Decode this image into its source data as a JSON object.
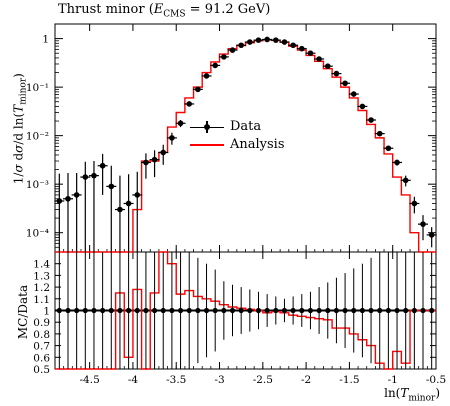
{
  "chart_data": {
    "type": "line",
    "title": "Thrust minor (E_CMS = 91.2 GeV)",
    "ylabel": "1/σ dσ/d ln(T_minor)",
    "ratio_ylabel": "MC/Data",
    "xlabel": "ln(T_minor)",
    "xlim": [
      -4.9,
      -0.5
    ],
    "ylim": [
      4e-05,
      2
    ],
    "ylog": true,
    "ratio_ylim": [
      0.5,
      1.5
    ],
    "xticks": [
      "-4.5",
      "-4",
      "-3.5",
      "-3",
      "-2.5",
      "-2",
      "-1.5",
      "-1",
      "-0.5"
    ],
    "yticks": [
      "10⁻⁴",
      "10⁻³",
      "10⁻²",
      "10⁻¹",
      "1"
    ],
    "ratio_yticks": [
      "0.5",
      "0.6",
      "0.7",
      "0.8",
      "0.9",
      "1",
      "1.1",
      "1.2",
      "1.3",
      "1.4"
    ],
    "legend_position": "center-left",
    "colors": {
      "data": "#000000",
      "analysis": "#ff0000"
    },
    "series": [
      {
        "name": "Data",
        "x": [
          -4.85,
          -4.75,
          -4.65,
          -4.55,
          -4.45,
          -4.35,
          -4.25,
          -4.15,
          -4.05,
          -3.95,
          -3.85,
          -3.75,
          -3.65,
          -3.55,
          -3.45,
          -3.35,
          -3.25,
          -3.15,
          -3.05,
          -2.95,
          -2.85,
          -2.75,
          -2.65,
          -2.55,
          -2.45,
          -2.35,
          -2.25,
          -2.15,
          -2.05,
          -1.95,
          -1.85,
          -1.75,
          -1.65,
          -1.55,
          -1.45,
          -1.35,
          -1.25,
          -1.15,
          -1.05,
          -0.95,
          -0.85,
          -0.75,
          -0.65,
          -0.55
        ],
        "y": [
          0.00045,
          0.0005,
          0.0006,
          0.0014,
          0.0015,
          0.0024,
          0.0009,
          0.0003,
          0.0004,
          0.0006,
          0.0028,
          0.0032,
          0.0045,
          0.009,
          0.018,
          0.045,
          0.09,
          0.17,
          0.28,
          0.42,
          0.58,
          0.73,
          0.85,
          0.93,
          0.96,
          0.93,
          0.85,
          0.73,
          0.62,
          0.5,
          0.38,
          0.27,
          0.19,
          0.12,
          0.072,
          0.04,
          0.021,
          0.011,
          0.0055,
          0.0028,
          0.0012,
          0.0004,
          0.00015,
          9e-05
        ],
        "err_up": [
          0.0012,
          0.0012,
          0.0011,
          0.0015,
          0.0015,
          0.0018,
          0.0015,
          0.0012,
          0.0012,
          0.0012,
          0.0015,
          0.0018,
          0.002,
          0.0025,
          0.003,
          0.004,
          0.006,
          0.008,
          0.01,
          0.012,
          0.014,
          0.016,
          0.018,
          0.02,
          0.02,
          0.02,
          0.018,
          0.016,
          0.014,
          0.012,
          0.01,
          0.008,
          0.006,
          0.004,
          0.003,
          0.0025,
          0.0015,
          0.001,
          0.0006,
          0.0004,
          0.0003,
          0.00015,
          8e-05,
          4e-05
        ],
        "ratio": [
          1,
          1,
          1,
          1,
          1,
          1,
          1,
          1,
          1,
          1,
          1,
          1,
          1,
          1,
          1,
          1,
          1,
          1,
          1,
          1,
          1,
          1,
          1,
          1,
          1,
          1,
          1,
          1,
          1,
          1,
          1,
          1,
          1,
          1,
          1,
          1,
          1,
          1,
          1,
          1,
          1,
          1,
          1,
          1
        ],
        "ratio_err": [
          0.5,
          0.5,
          0.5,
          0.5,
          0.5,
          0.5,
          0.5,
          0.5,
          0.5,
          0.5,
          0.5,
          0.5,
          0.5,
          0.5,
          0.5,
          0.5,
          0.45,
          0.4,
          0.35,
          0.25,
          0.22,
          0.2,
          0.18,
          0.16,
          0.14,
          0.12,
          0.1,
          0.12,
          0.14,
          0.16,
          0.2,
          0.24,
          0.28,
          0.32,
          0.36,
          0.4,
          0.45,
          0.5,
          0.5,
          0.5,
          0.5,
          0.5,
          0.5,
          0.5
        ]
      },
      {
        "name": "Analysis",
        "edges": [
          -4.9,
          -4.8,
          -4.7,
          -4.6,
          -4.5,
          -4.4,
          -4.3,
          -4.2,
          -4.1,
          -4.0,
          -3.9,
          -3.8,
          -3.7,
          -3.6,
          -3.5,
          -3.4,
          -3.3,
          -3.2,
          -3.1,
          -3.0,
          -2.9,
          -2.8,
          -2.7,
          -2.6,
          -2.5,
          -2.4,
          -2.3,
          -2.2,
          -2.1,
          -2.0,
          -1.9,
          -1.8,
          -1.7,
          -1.6,
          -1.5,
          -1.4,
          -1.3,
          -1.2,
          -1.1,
          -1.0,
          -0.9,
          -0.8,
          -0.7,
          -0.6,
          -0.5
        ],
        "y": [
          4e-05,
          4e-05,
          4e-05,
          4e-05,
          4e-05,
          4e-05,
          4e-05,
          4e-05,
          4e-05,
          0.0003,
          0.003,
          0.003,
          0.0045,
          0.015,
          0.03,
          0.06,
          0.1,
          0.2,
          0.33,
          0.48,
          0.62,
          0.72,
          0.82,
          0.9,
          0.95,
          0.92,
          0.84,
          0.7,
          0.58,
          0.45,
          0.34,
          0.24,
          0.16,
          0.1,
          0.06,
          0.033,
          0.017,
          0.009,
          0.0042,
          0.0014,
          0.0006,
          0.0001,
          4e-05,
          4e-05
        ],
        "ratio": [
          0.5,
          0.5,
          0.5,
          0.5,
          0.5,
          0.5,
          0.5,
          1.15,
          0.6,
          1.18,
          0.5,
          1.15,
          1.5,
          1.4,
          1.14,
          1.17,
          1.12,
          1.1,
          1.08,
          1.05,
          1.03,
          1.02,
          1.01,
          1.0,
          0.98,
          0.99,
          0.98,
          0.96,
          0.95,
          0.94,
          0.93,
          0.92,
          0.85,
          0.85,
          0.8,
          0.75,
          0.7,
          0.55,
          0.5,
          0.65,
          0.55,
          1.0,
          1.0,
          1.0
        ]
      }
    ]
  },
  "legend": {
    "data": "Data",
    "analysis": "Analysis"
  }
}
